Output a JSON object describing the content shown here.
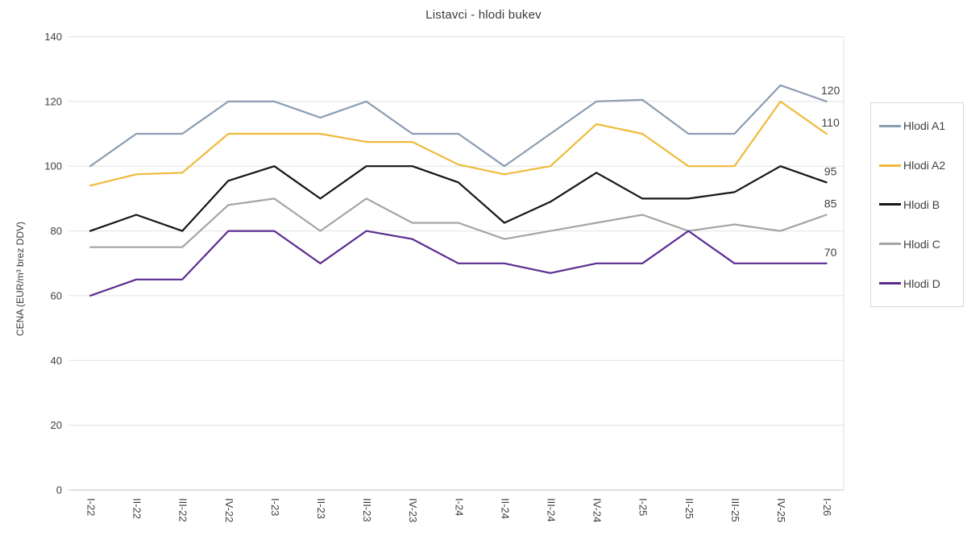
{
  "chart_data": {
    "type": "line",
    "title": "Listavci - hlodi bukev",
    "ylabel": "CENA (EUR/m³ brez DDV)",
    "xlabel": "",
    "ylim": [
      0,
      140
    ],
    "yticks": [
      0,
      20,
      40,
      60,
      80,
      100,
      120,
      140
    ],
    "grid": "horizontal",
    "legend_position": "right-box",
    "categories": [
      "I-22",
      "II-22",
      "III-22",
      "IV-22",
      "I-23",
      "II-23",
      "III-23",
      "IV-23",
      "I-24",
      "II-24",
      "III-24",
      "IV-24",
      "I-25",
      "II-25",
      "III-25",
      "IV-25",
      "I-26"
    ],
    "series": [
      {
        "name": "Hlodi A1",
        "color": "#8C9DB2",
        "end_label": "120",
        "values": [
          100,
          110,
          110,
          120,
          120,
          115,
          120,
          110,
          110,
          100,
          110,
          120,
          120.5,
          110,
          110,
          125,
          120
        ]
      },
      {
        "name": "Hlodi A2",
        "color": "#EEBA3A",
        "end_label": "110",
        "values": [
          94,
          97.5,
          98,
          110,
          110,
          110,
          107.5,
          107.5,
          100.5,
          97.5,
          100,
          113,
          110,
          100,
          100,
          120,
          110
        ]
      },
      {
        "name": "Hlodi B",
        "color": "#161616",
        "end_label": "95",
        "values": [
          80,
          85,
          80,
          95.5,
          100,
          90,
          100,
          100,
          95,
          82.5,
          89,
          98,
          90,
          90,
          92,
          100,
          95
        ]
      },
      {
        "name": "Hlodi C",
        "color": "#A5A5A5",
        "end_label": "85",
        "values": [
          75,
          75,
          75,
          88,
          90,
          80,
          90,
          82.5,
          82.5,
          77.5,
          80,
          82.5,
          85,
          80,
          82,
          80,
          85
        ]
      },
      {
        "name": "Hlodi D",
        "color": "#5A2D91",
        "end_label": "70",
        "values": [
          60,
          65,
          65,
          80,
          80,
          70,
          80,
          77.5,
          70,
          70,
          67,
          70,
          70,
          80,
          70,
          70,
          70
        ]
      }
    ],
    "colors": {
      "gridline": "#E2E2E2",
      "axis_line": "#C2C2C2",
      "tick_text": "#3F3F3F"
    }
  }
}
